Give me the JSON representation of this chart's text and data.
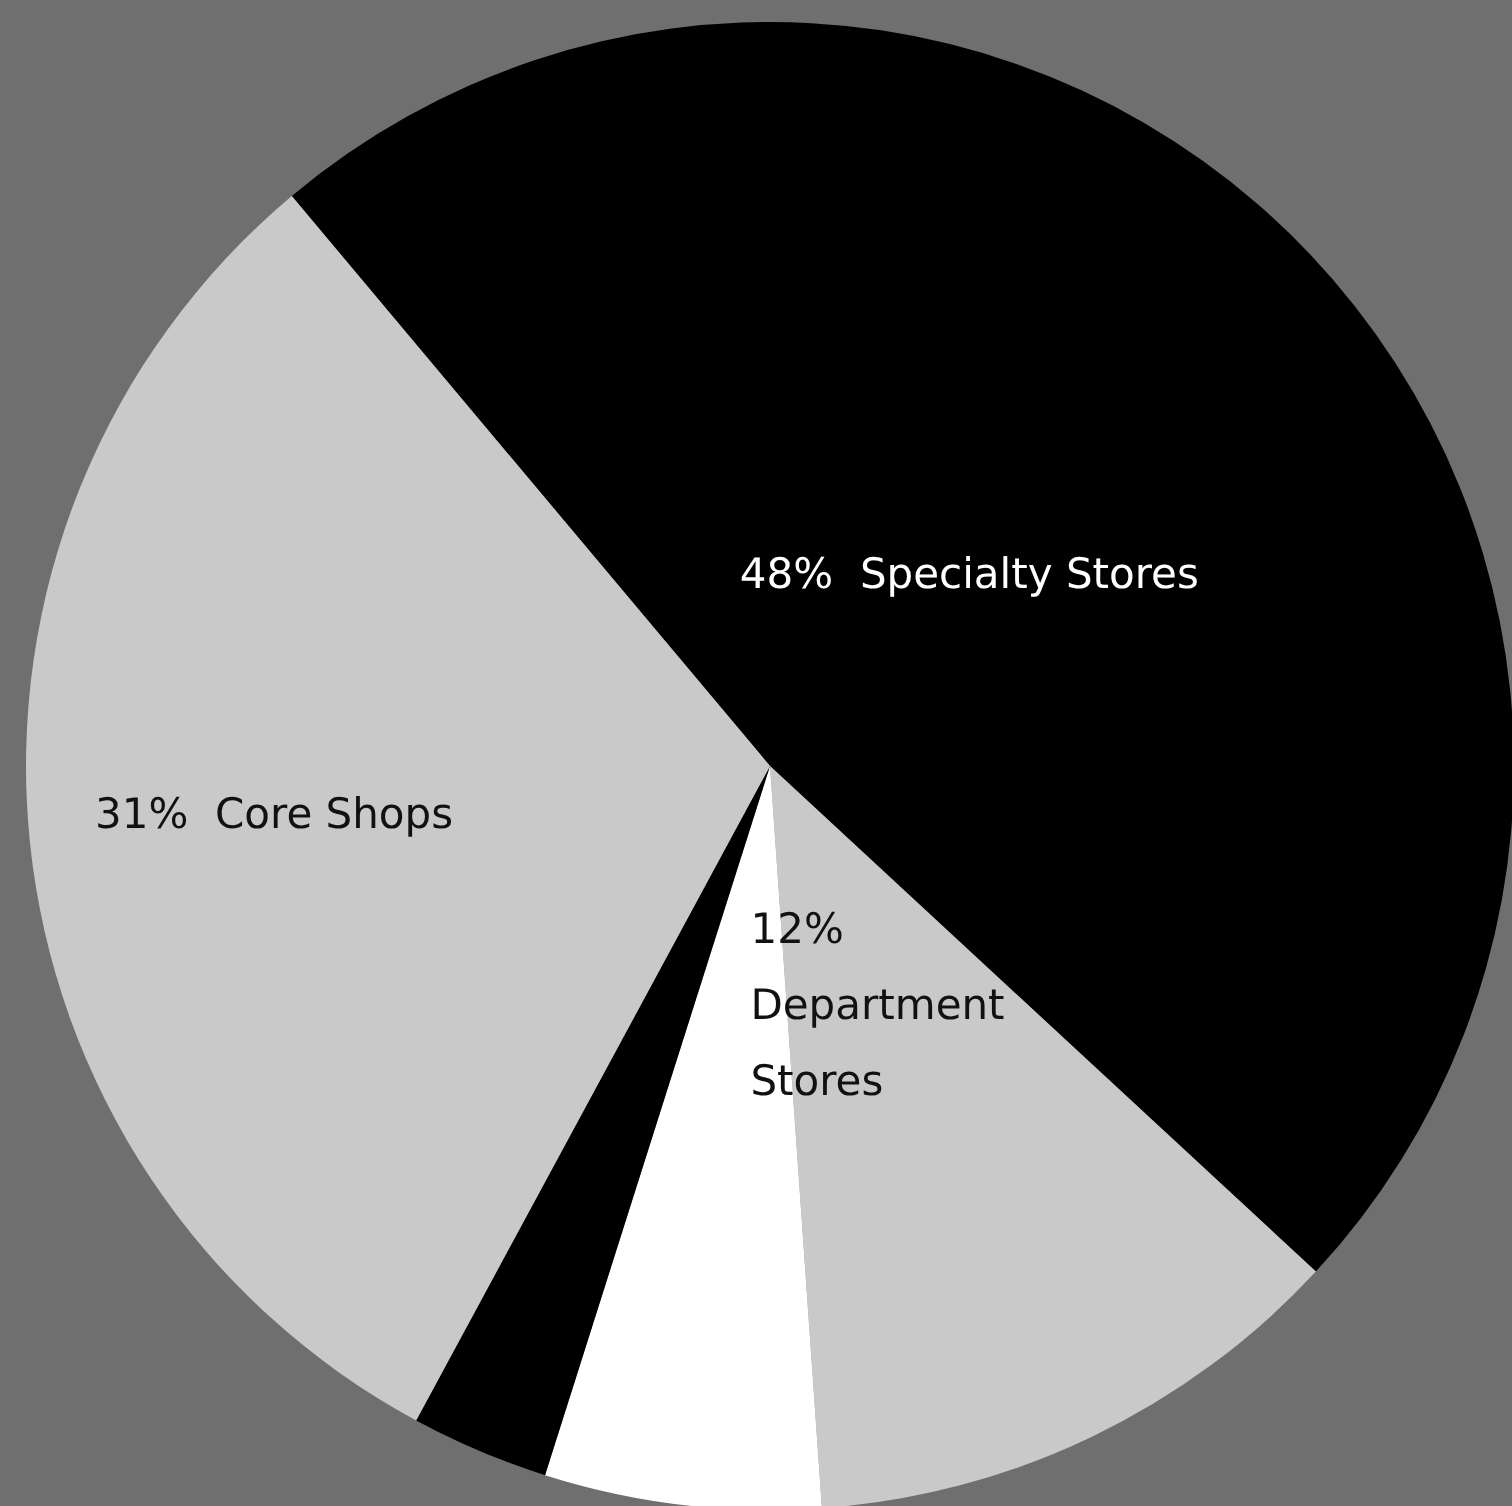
{
  "chart_data": {
    "type": "pie",
    "categories": [
      "Specialty Stores",
      "Department Stores",
      null,
      null,
      "Core Shops"
    ],
    "values": [
      48,
      12,
      6,
      3,
      31
    ],
    "colors": [
      "#000000",
      "#c9c9c9",
      "#ffffff",
      "#000000",
      "#c9c9c9"
    ],
    "value_labels": [
      "48%",
      "12%",
      null,
      null,
      "31%"
    ],
    "legend": false
  }
}
